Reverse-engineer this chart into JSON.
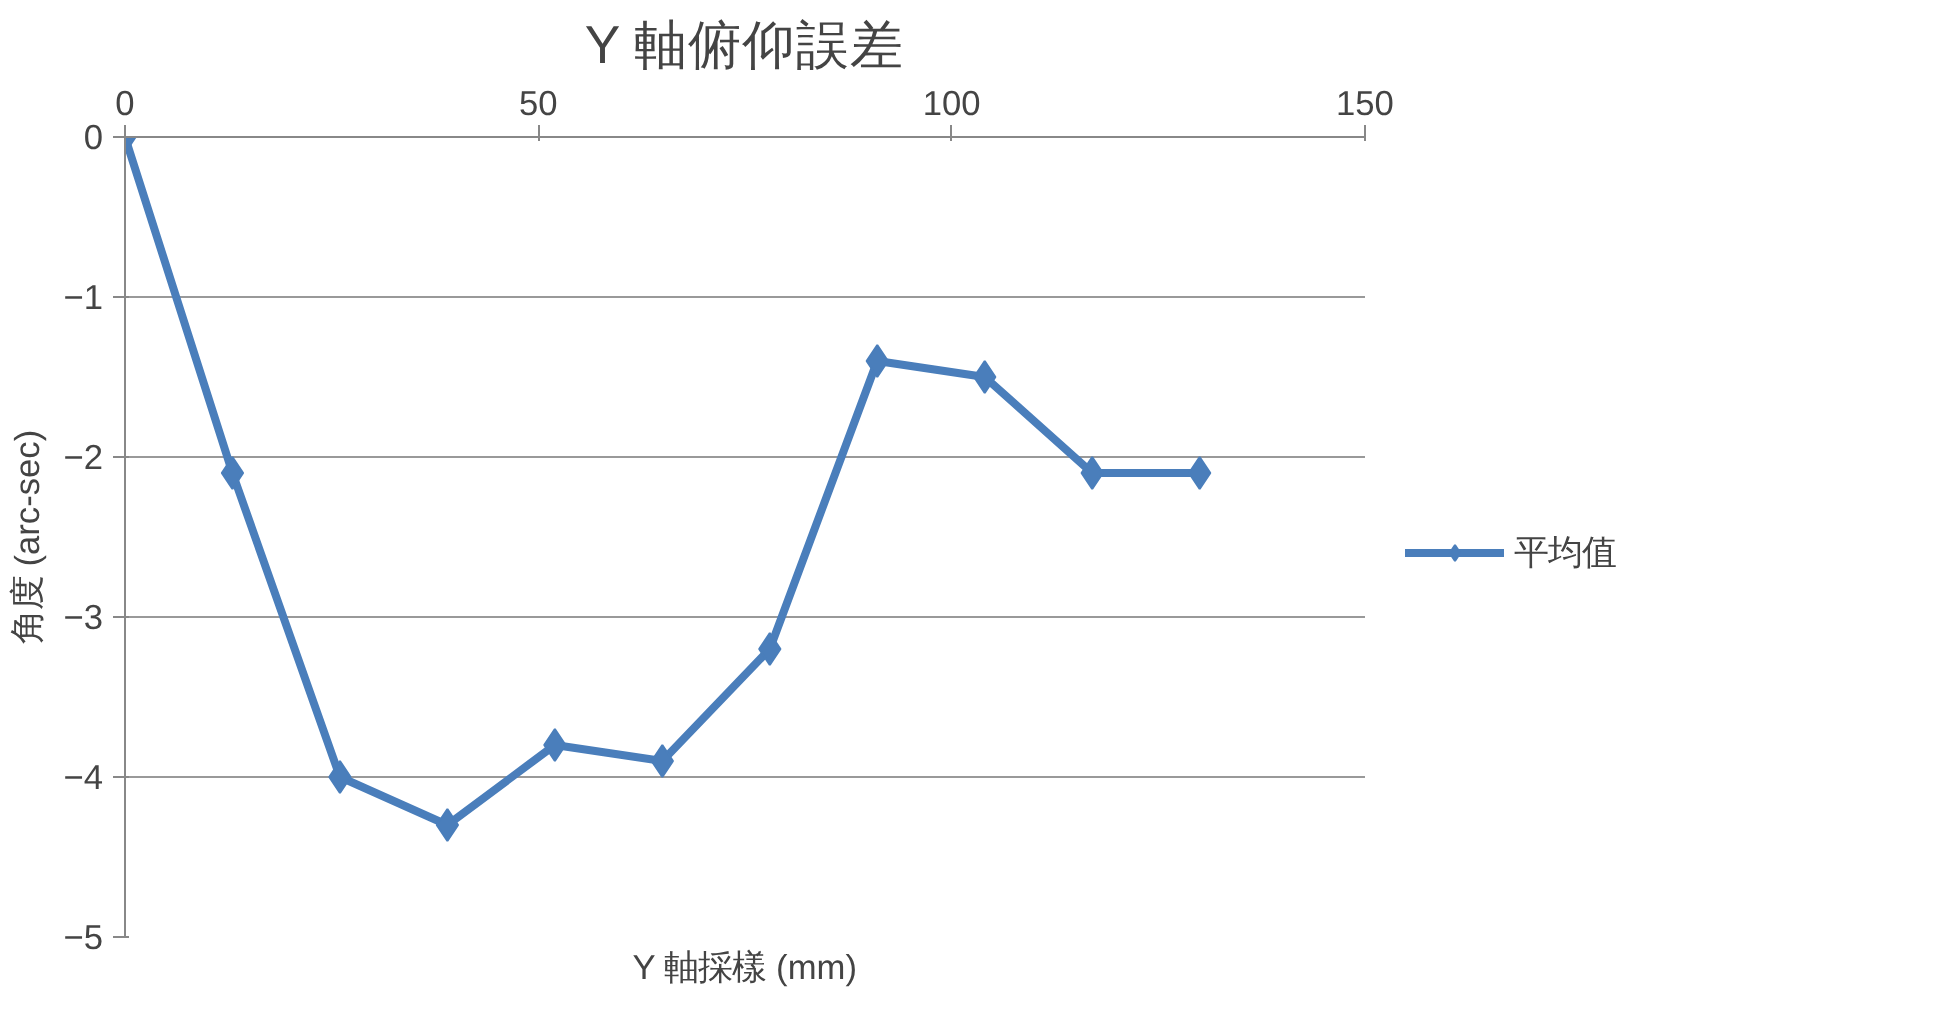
{
  "chart_data": {
    "type": "line",
    "title": "Y 軸俯仰誤差",
    "xlabel": "Y 軸採樣 (mm)",
    "ylabel": "角度 (arc-sec)",
    "x": [
      0,
      13,
      26,
      39,
      52,
      65,
      78,
      91,
      104,
      117,
      130
    ],
    "series": [
      {
        "name": "平均值",
        "color": "#4a7ebb",
        "values": [
          0,
          -2.1,
          -4,
          -4.3,
          -3.8,
          -3.9,
          -3.2,
          -1.4,
          -1.5,
          -2.1,
          -2.1
        ]
      }
    ],
    "xlim": [
      0,
      150
    ],
    "xticks": [
      0,
      50,
      100,
      150
    ],
    "ylim": [
      -5,
      0
    ],
    "yticks": [
      {
        "value": 0,
        "label": "0"
      },
      {
        "value": -1,
        "label": "−1"
      },
      {
        "value": -2,
        "label": "−2"
      },
      {
        "value": -3,
        "label": "−3"
      },
      {
        "value": -4,
        "label": "−4"
      },
      {
        "value": -5,
        "label": "−5"
      }
    ],
    "grid": "y",
    "legend": "right",
    "marker": "diamond",
    "line_style": "solid"
  }
}
